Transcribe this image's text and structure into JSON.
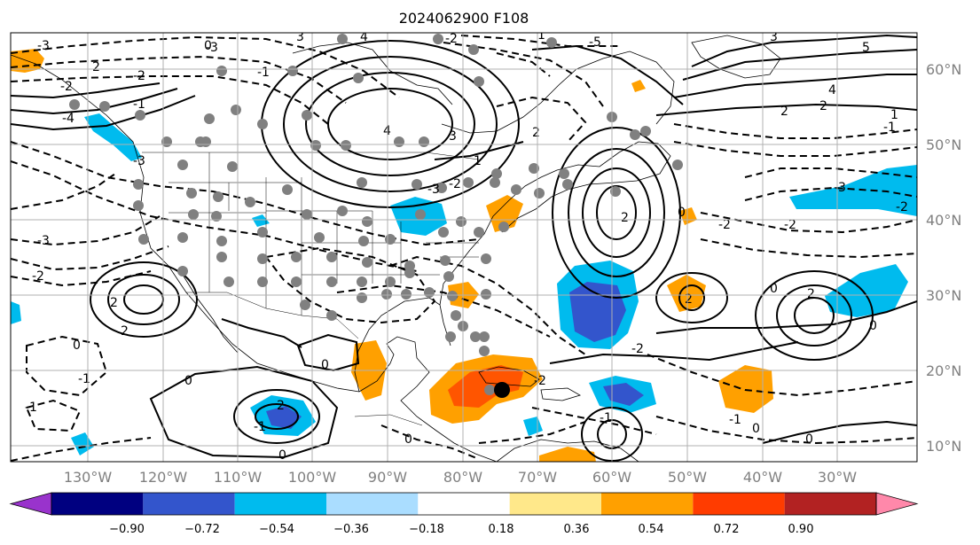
{
  "title": "2024062900 F108",
  "longitude_labels": [
    "130°W",
    "120°W",
    "110°W",
    "100°W",
    "90°W",
    "80°W",
    "70°W",
    "60°W",
    "50°W",
    "40°W",
    "30°W"
  ],
  "latitude_labels": [
    "60°N",
    "50°N",
    "40°N",
    "30°N",
    "20°N",
    "10°N"
  ],
  "colorbar": {
    "tick_labels": [
      "−0.90",
      "−0.72",
      "−0.54",
      "−0.36",
      "−0.18",
      "0.18",
      "0.36",
      "0.54",
      "0.72",
      "0.90"
    ],
    "colors": [
      "#9933cc",
      "#000080",
      "#3355cc",
      "#00bbee",
      "#aaddff",
      "#ffffff",
      "#ffe88a",
      "#ffa000",
      "#ff3c00",
      "#b22222",
      "#ff88aa"
    ]
  },
  "contour_labels": [
    "-3",
    "2",
    "-3",
    "2",
    "-2",
    "3",
    "4",
    "-5",
    "-2",
    "4",
    "3",
    "-1",
    "1",
    "-3",
    "-2",
    "-3",
    "-2",
    "-4",
    "0",
    "2",
    "-2",
    "-1",
    "1",
    "2",
    "0",
    "0",
    "2",
    "-1",
    "0",
    "-1",
    "0",
    "0",
    "0",
    "-2",
    "-3",
    "5",
    "4",
    "3",
    "2",
    "2",
    "1",
    "-1",
    "2",
    "-2",
    "0",
    "2",
    "-1",
    "0",
    "0",
    "-2",
    "-2",
    "-1",
    "-1",
    "2",
    "0",
    "-2",
    "-3"
  ],
  "colors": {
    "fill_orange": "#ffa000",
    "fill_red": "#ff5500",
    "fill_light_blue": "#00bbee",
    "fill_mid_blue": "#3355cc",
    "marker_gray": "#808080",
    "marker_black": "#000000"
  },
  "grid": true
}
